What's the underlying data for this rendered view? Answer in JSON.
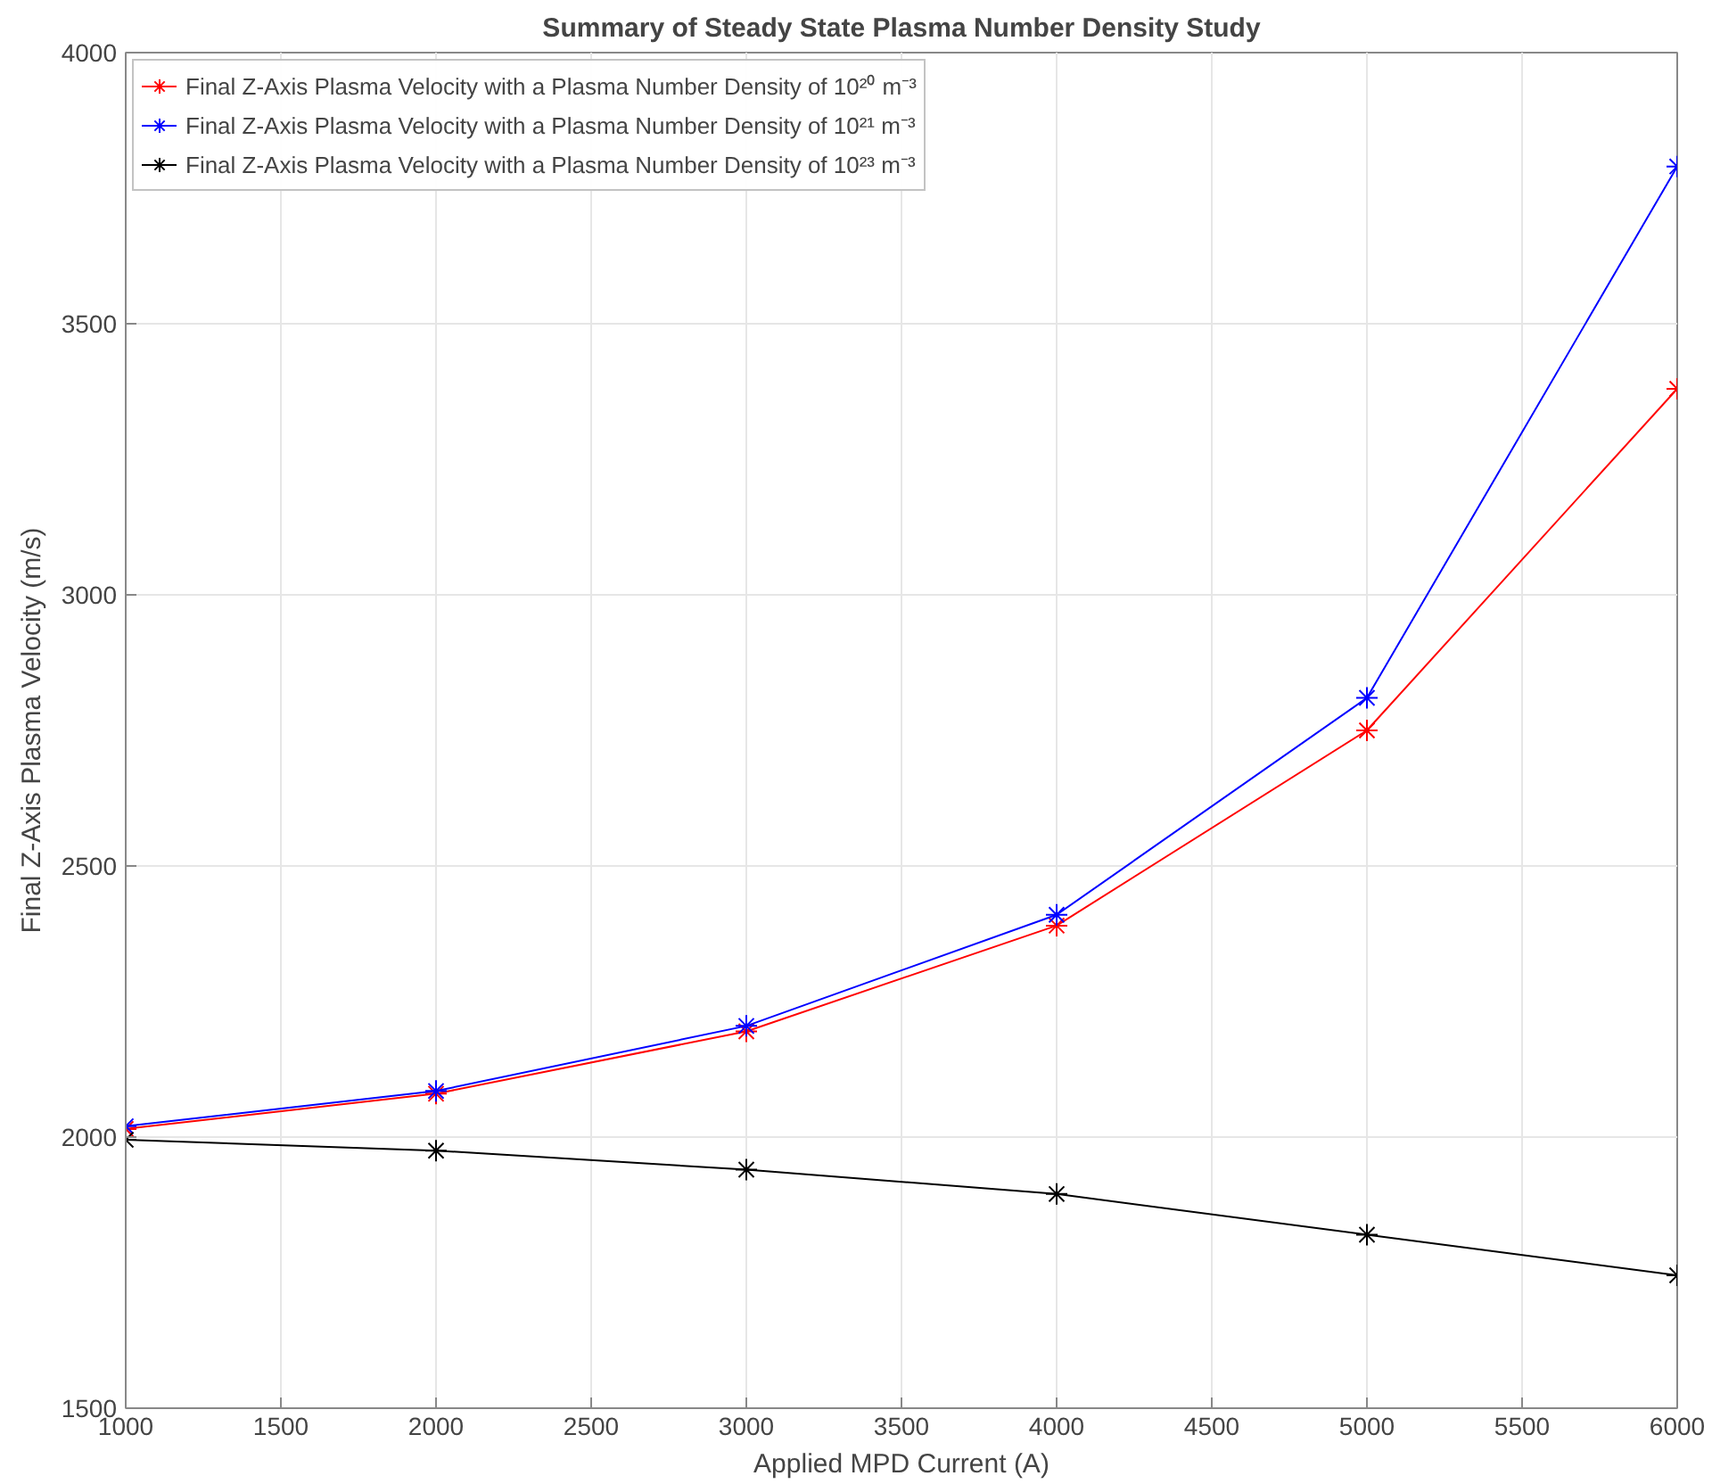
{
  "chart_data": {
    "type": "line",
    "title": "Summary of Steady State Plasma Number Density Study",
    "xlabel": "Applied MPD Current (A)",
    "ylabel": "Final Z-Axis Plasma Velocity (m/s)",
    "x": [
      1000,
      2000,
      3000,
      4000,
      5000,
      6000
    ],
    "series": [
      {
        "name": "Final Z-Axis Plasma Velocity with a Plasma Number Density of 10²⁰ m⁻³",
        "color": "#ff0000",
        "values": [
          2015,
          2080,
          2195,
          2390,
          2750,
          3380
        ]
      },
      {
        "name": "Final Z-Axis Plasma Velocity with a Plasma Number Density of 10²¹ m⁻³",
        "color": "#0000ff",
        "values": [
          2020,
          2085,
          2205,
          2410,
          2810,
          3790
        ]
      },
      {
        "name": "Final Z-Axis Plasma Velocity with a Plasma Number Density of 10²³ m⁻³",
        "color": "#000000",
        "values": [
          1995,
          1975,
          1940,
          1895,
          1820,
          1745
        ]
      }
    ],
    "xlim": [
      1000,
      6000
    ],
    "xticks": [
      1000,
      1500,
      2000,
      2500,
      3000,
      3500,
      4000,
      4500,
      5000,
      5500,
      6000
    ],
    "ylim": [
      1500,
      4000
    ],
    "yticks": [
      1500,
      2000,
      2500,
      3000,
      3500,
      4000
    ],
    "grid": true,
    "legend": "top left",
    "marker": "cross",
    "line_style": "solid"
  }
}
